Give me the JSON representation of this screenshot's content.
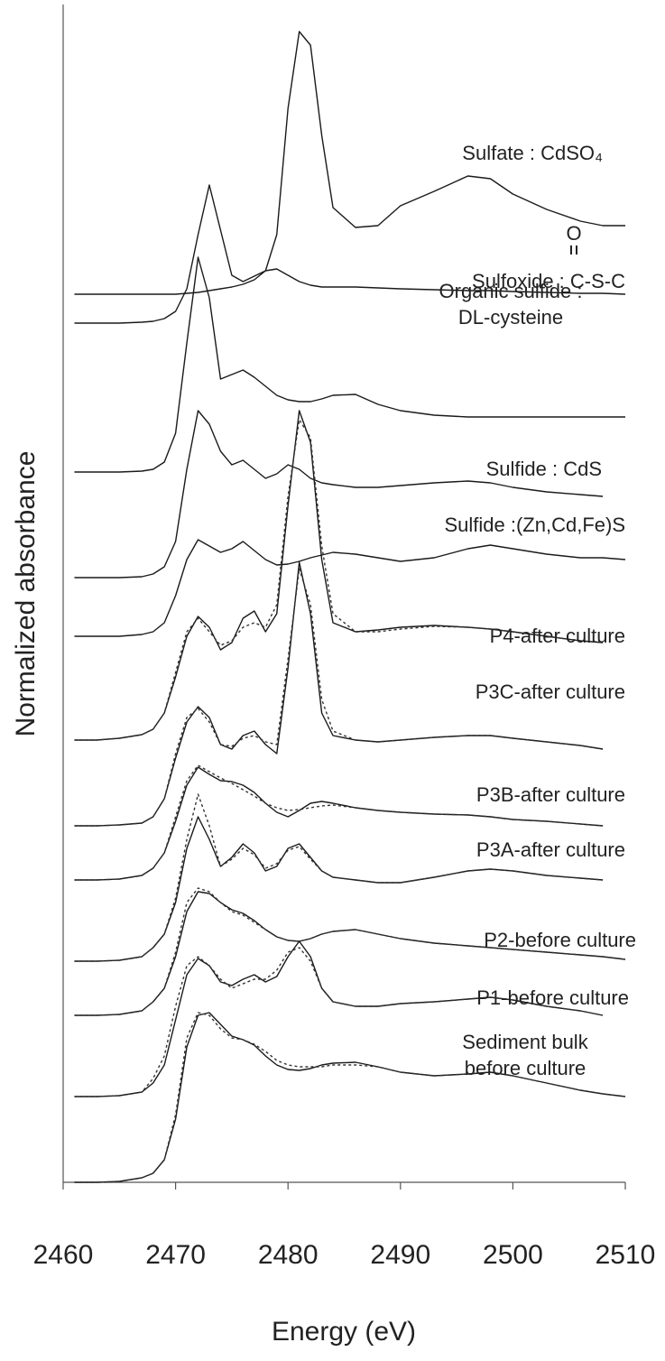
{
  "chart_data": {
    "type": "line",
    "x_label": "Energy (eV)",
    "y_label": "Normalized absorbance",
    "annotation": "O",
    "xlim": [
      2460,
      2510
    ],
    "xticks": [
      2460,
      2470,
      2480,
      2490,
      2500,
      2510
    ],
    "ylim": [
      0,
      130.5
    ],
    "x": [
      2461,
      2463,
      2465,
      2467,
      2468,
      2469,
      2470,
      2471,
      2472,
      2473,
      2474,
      2475,
      2476,
      2477,
      2478,
      2479,
      2480,
      2481,
      2482,
      2483,
      2484,
      2486,
      2488,
      2490,
      2493,
      2496,
      2498,
      2500,
      2503,
      2506,
      2508,
      2510
    ],
    "series": [
      {
        "name": "Sulfate : CdSO₄",
        "color": "#1a1a1a",
        "values": [
          98.4,
          98.4,
          98.4,
          98.4,
          98.4,
          98.4,
          98.4,
          98.5,
          98.6,
          98.8,
          99.0,
          99.2,
          99.5,
          100.0,
          101.0,
          105.0,
          119.0,
          127.5,
          126.0,
          116.0,
          108.0,
          105.8,
          106.0,
          108.2,
          109.8,
          111.5,
          111.2,
          109.5,
          107.8,
          106.5,
          106.0,
          106.0
        ]
      },
      {
        "name": "Sulfoxide : C-S-C",
        "color": "#1a1a1a",
        "values": [
          95.2,
          95.2,
          95.2,
          95.3,
          95.4,
          95.7,
          96.5,
          99.0,
          105.0,
          110.5,
          105.5,
          100.5,
          99.8,
          100.4,
          101.0,
          101.2,
          100.5,
          99.8,
          99.4,
          99.2,
          99.2,
          99.2,
          99.1,
          99.0,
          98.9,
          98.8,
          98.8,
          98.7,
          98.6,
          98.5,
          98.5,
          98.4
        ]
      },
      {
        "name": "Organic sulfide :\nDL-cysteine",
        "color": "#1a1a1a",
        "values": [
          78.7,
          78.7,
          78.7,
          78.8,
          79.0,
          79.8,
          83.0,
          93.0,
          102.5,
          98.0,
          89.0,
          89.5,
          90.0,
          89.2,
          88.2,
          87.2,
          86.7,
          86.5,
          86.5,
          86.8,
          87.2,
          87.3,
          86.2,
          85.5,
          85.0,
          84.8,
          84.8,
          84.8,
          84.8,
          84.8,
          84.8,
          84.8
        ]
      },
      {
        "name": "Sulfide : CdS",
        "color": "#1a1a1a",
        "values": [
          67.0,
          67.0,
          67.0,
          67.1,
          67.4,
          68.2,
          71.0,
          79.0,
          85.5,
          84.0,
          81.0,
          79.5,
          80.0,
          79.0,
          78.0,
          78.5,
          79.5,
          79.0,
          78.0,
          77.5,
          77.3,
          77.0,
          77.0,
          77.2,
          77.5,
          77.7,
          77.5,
          77.0,
          76.5,
          76.2,
          76.0,
          null
        ]
      },
      {
        "name": "Sulfide :(Zn,Cd,Fe)S",
        "color": "#1a1a1a",
        "values": [
          60.5,
          60.5,
          60.5,
          60.7,
          61.0,
          62.0,
          65.0,
          69.0,
          71.2,
          70.5,
          69.8,
          70.2,
          71.0,
          70.0,
          69.0,
          68.4,
          68.5,
          68.8,
          69.2,
          69.5,
          69.8,
          69.6,
          69.2,
          68.8,
          69.2,
          70.2,
          70.6,
          70.2,
          69.6,
          69.2,
          69.2,
          69.0
        ]
      },
      {
        "name": "P4-after culture",
        "color": "#1a1a1a",
        "values": [
          49.0,
          49.0,
          49.2,
          49.6,
          50.2,
          52.0,
          56.0,
          60.5,
          62.7,
          61.5,
          59.0,
          59.8,
          62.5,
          63.3,
          61.0,
          63.0,
          75.0,
          85.5,
          82.0,
          69.0,
          62.0,
          61.0,
          61.2,
          61.5,
          61.7,
          61.5,
          61.3,
          61.0,
          60.5,
          60.0,
          59.8,
          null
        ]
      },
      {
        "name": "P3C-after culture",
        "color": "#1a1a1a",
        "values": [
          39.5,
          39.5,
          39.6,
          39.8,
          40.5,
          42.5,
          47.0,
          51.0,
          52.7,
          51.5,
          48.5,
          48.0,
          49.5,
          50.0,
          48.5,
          47.5,
          57.0,
          68.7,
          63.0,
          52.0,
          49.5,
          49.0,
          48.8,
          49.0,
          49.3,
          49.5,
          49.5,
          49.2,
          48.8,
          48.4,
          48.0,
          null
        ]
      },
      {
        "name": "P3B-after culture",
        "color": "#1a1a1a",
        "values": [
          33.5,
          33.5,
          33.6,
          34.0,
          34.8,
          36.5,
          40.0,
          44.0,
          46.0,
          45.2,
          44.5,
          44.4,
          44.0,
          43.2,
          42.0,
          41.0,
          40.5,
          41.2,
          42.0,
          42.2,
          42.0,
          41.5,
          41.2,
          41.0,
          40.8,
          40.7,
          40.5,
          40.2,
          40.0,
          39.7,
          39.5,
          null
        ]
      },
      {
        "name": "P3A-after culture",
        "color": "#1a1a1a",
        "values": [
          24.5,
          24.5,
          24.6,
          25.0,
          26.0,
          27.5,
          31.0,
          37.0,
          40.5,
          38.0,
          35.0,
          36.0,
          37.5,
          36.5,
          34.5,
          35.0,
          37.0,
          37.5,
          36.0,
          34.5,
          33.8,
          33.5,
          33.2,
          33.2,
          33.8,
          34.5,
          34.7,
          34.5,
          34.0,
          33.7,
          33.5,
          null
        ]
      },
      {
        "name": "P2-before culture",
        "color": "#1a1a1a",
        "values": [
          18.5,
          18.5,
          18.6,
          19.0,
          20.0,
          21.5,
          25.0,
          30.0,
          32.2,
          32.0,
          31.0,
          30.2,
          29.8,
          29.0,
          28.0,
          27.2,
          26.8,
          26.7,
          27.0,
          27.5,
          27.8,
          28.0,
          27.5,
          27.0,
          26.5,
          26.2,
          26.0,
          25.8,
          25.5,
          25.2,
          25.0,
          24.7
        ]
      },
      {
        "name": "P1-before culture",
        "color": "#1a1a1a",
        "values": [
          9.5,
          9.5,
          9.6,
          10.0,
          11.0,
          13.0,
          18.0,
          23.0,
          24.8,
          24.0,
          22.2,
          21.8,
          22.5,
          23.0,
          22.2,
          22.8,
          25.0,
          26.7,
          25.0,
          21.5,
          20.0,
          19.5,
          19.5,
          19.8,
          20.0,
          20.3,
          20.5,
          20.2,
          19.5,
          19.0,
          18.5,
          null
        ]
      },
      {
        "name": "Sediment bulk\nbefore culture",
        "color": "#1a1a1a",
        "values": [
          0.0,
          0.0,
          0.1,
          0.5,
          1.0,
          2.5,
          7.0,
          15.0,
          18.5,
          18.8,
          17.5,
          16.2,
          15.8,
          15.2,
          14.0,
          13.0,
          12.5,
          12.4,
          12.6,
          13.0,
          13.2,
          13.3,
          12.8,
          12.2,
          11.8,
          12.0,
          12.2,
          11.8,
          11.0,
          10.2,
          9.8,
          9.5
        ]
      },
      {
        "dashed": true,
        "color": "#333333",
        "values": [
          49.0,
          49.0,
          49.2,
          49.6,
          50.2,
          52.0,
          56.5,
          61.0,
          62.5,
          61.0,
          59.5,
          60.0,
          61.5,
          62.0,
          61.5,
          64.0,
          76.0,
          84.5,
          82.5,
          70.5,
          63.0,
          61.0,
          61.0,
          61.3,
          61.6,
          61.5,
          61.3,
          61.0,
          60.5,
          60.0,
          59.8,
          null
        ]
      },
      {
        "dashed": true,
        "color": "#333333",
        "values": [
          39.5,
          39.5,
          39.6,
          39.8,
          40.5,
          42.5,
          47.5,
          51.5,
          52.5,
          51.0,
          48.5,
          48.3,
          49.2,
          49.5,
          48.8,
          48.5,
          58.0,
          68.0,
          64.0,
          53.5,
          50.0,
          49.0,
          48.8,
          49.0,
          49.3,
          49.5,
          49.5,
          49.2,
          48.8,
          48.4,
          48.0,
          null
        ]
      },
      {
        "dashed": true,
        "color": "#333333",
        "values": [
          33.5,
          33.5,
          33.6,
          34.0,
          34.8,
          36.5,
          40.5,
          44.5,
          46.2,
          45.5,
          44.8,
          44.2,
          43.5,
          42.8,
          42.0,
          41.5,
          41.2,
          41.3,
          41.5,
          41.7,
          41.8,
          41.5,
          41.2,
          41.0,
          40.8,
          40.7,
          40.5,
          40.2,
          40.0,
          39.7,
          39.5,
          null
        ]
      },
      {
        "dashed": true,
        "color": "#333333",
        "values": [
          24.5,
          24.5,
          24.6,
          25.0,
          26.0,
          27.5,
          31.5,
          38.0,
          43.0,
          39.5,
          35.0,
          35.8,
          37.0,
          36.3,
          34.8,
          35.3,
          36.8,
          37.2,
          35.8,
          34.5,
          33.8,
          33.5,
          33.2,
          33.2,
          33.8,
          34.5,
          34.7,
          34.5,
          34.0,
          33.7,
          33.5,
          null
        ]
      },
      {
        "dashed": true,
        "color": "#333333",
        "values": [
          18.5,
          18.5,
          18.6,
          19.0,
          20.0,
          21.5,
          25.5,
          31.0,
          32.6,
          32.2,
          31.0,
          30.0,
          29.6,
          28.8,
          28.0,
          27.2,
          26.8,
          26.7,
          27.0,
          27.5,
          27.8,
          28.0,
          27.5,
          27.0,
          26.5,
          26.2,
          26.0,
          25.8,
          25.5,
          25.2,
          25.0,
          24.7
        ]
      },
      {
        "dashed": true,
        "color": "#333333",
        "values": [
          9.5,
          9.5,
          9.6,
          10.0,
          11.5,
          14.0,
          19.5,
          24.0,
          25.0,
          24.0,
          22.5,
          21.5,
          22.0,
          22.5,
          22.5,
          23.5,
          25.5,
          26.0,
          24.5,
          21.5,
          20.0,
          19.5,
          19.5,
          19.8,
          20.0,
          20.3,
          20.5,
          20.2,
          19.5,
          19.0,
          18.5,
          null
        ]
      },
      {
        "dashed": true,
        "color": "#333333",
        "values": [
          0.0,
          0.0,
          0.1,
          0.5,
          1.0,
          2.5,
          7.5,
          16.0,
          18.8,
          18.5,
          17.0,
          16.0,
          15.8,
          15.3,
          14.5,
          13.5,
          13.0,
          12.8,
          12.8,
          12.8,
          13.0,
          13.0,
          12.8,
          12.2,
          11.8,
          12.0,
          12.2,
          11.8,
          11.0,
          10.2,
          9.8,
          9.5
        ]
      }
    ]
  }
}
